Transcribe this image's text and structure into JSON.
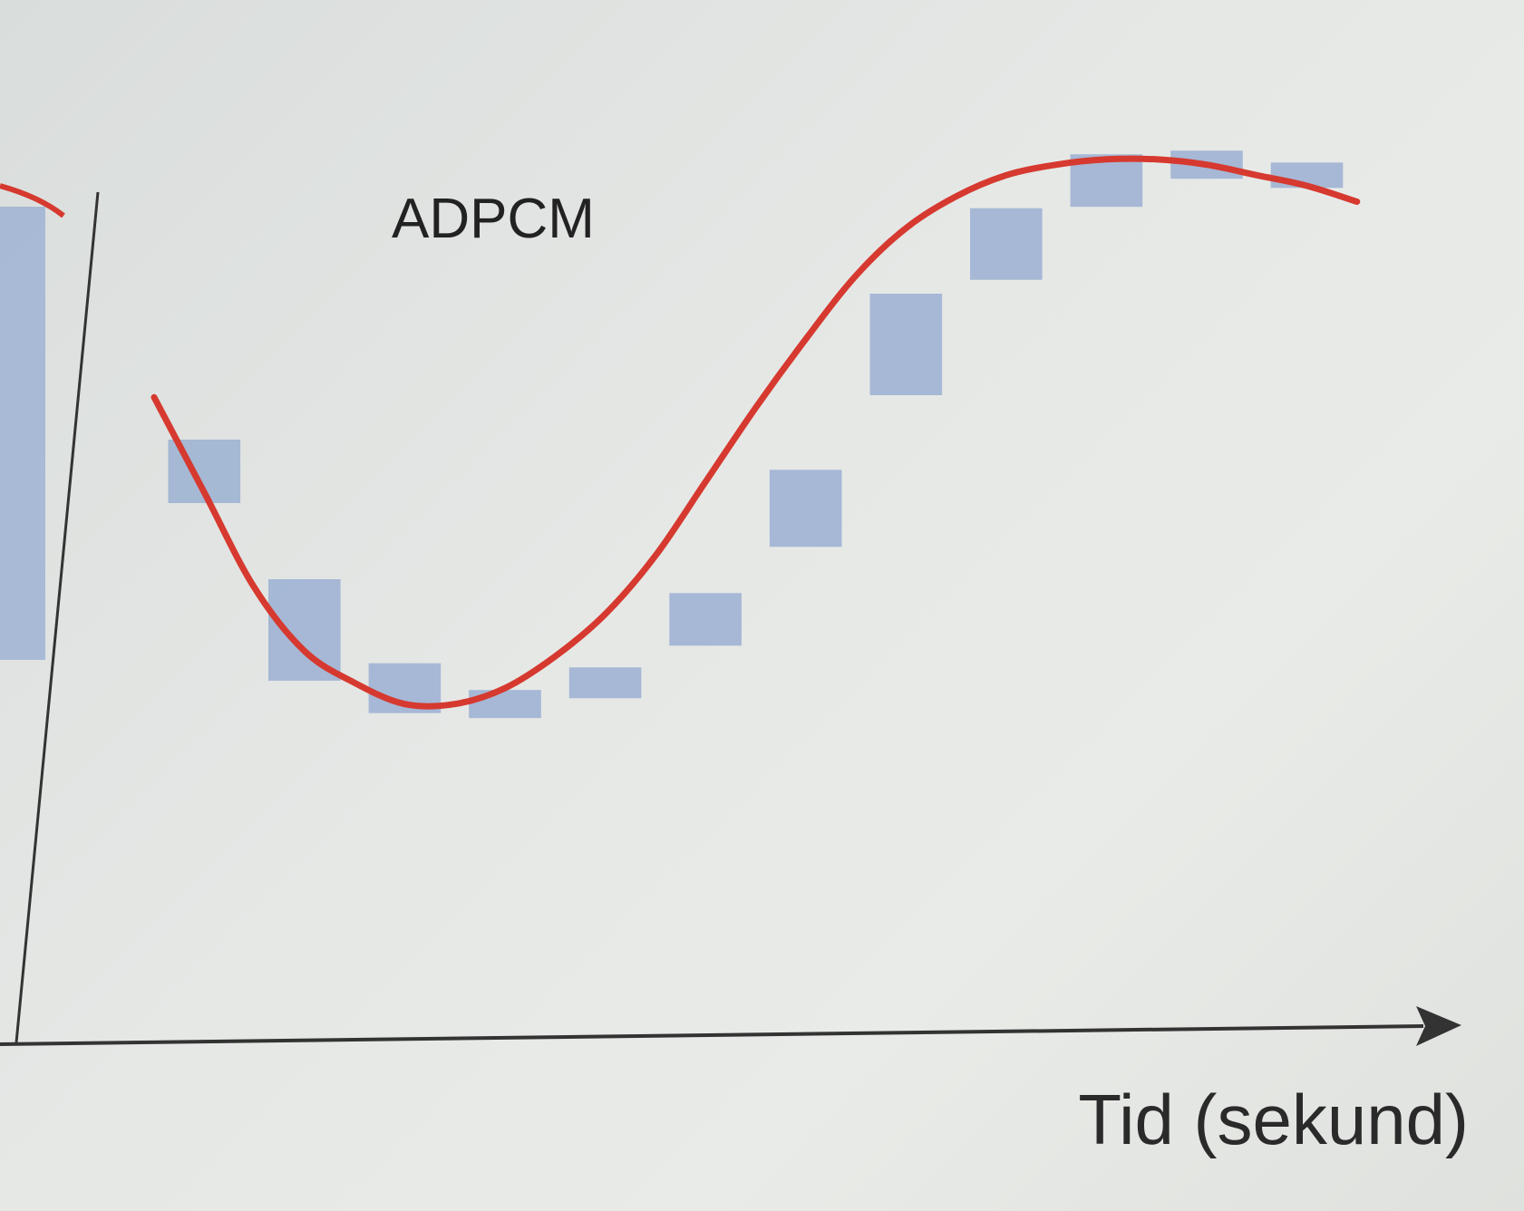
{
  "diagram": {
    "title": "ADPCM",
    "x_axis_label": "Tid (sekund)"
  },
  "colors": {
    "background": "#e4e6e3",
    "signal_curve": "#d6392f",
    "sample_blocks": "#9fb3d3",
    "axis": "#333333"
  },
  "chart_data": {
    "type": "line",
    "title": "ADPCM",
    "xlabel": "Tid (sekund)",
    "ylabel": "",
    "x_axis_arrow": true,
    "grid": false,
    "series": [
      {
        "kind": "continuous-signal",
        "x": [
          0.0,
          0.5,
          1.0,
          1.5,
          2.0,
          2.5,
          3.0,
          3.5,
          4.0,
          4.5,
          5.0,
          5.5,
          6.0,
          6.5,
          7.0,
          7.5,
          8.0,
          8.5,
          9.0,
          9.5,
          10.0,
          10.5,
          11.0,
          11.5,
          12.0
        ],
        "y": [
          6.1,
          5.2,
          4.3,
          3.7,
          3.4,
          3.2,
          3.2,
          3.35,
          3.65,
          4.05,
          4.6,
          5.3,
          6.0,
          6.65,
          7.25,
          7.7,
          8.0,
          8.2,
          8.3,
          8.35,
          8.35,
          8.3,
          8.2,
          8.1,
          7.95
        ]
      },
      {
        "kind": "quantized-samples",
        "x": [
          0.5,
          1.5,
          2.5,
          3.5,
          4.5,
          5.5,
          6.5,
          7.5,
          8.5,
          9.5,
          10.5,
          11.5
        ],
        "y": [
          5.4,
          3.9,
          3.35,
          3.2,
          3.4,
          4.0,
          5.05,
          6.6,
          7.55,
          8.15,
          8.3,
          8.2
        ]
      }
    ],
    "ylim": [
      0,
      9
    ],
    "xlim": [
      0,
      12.3
    ]
  }
}
